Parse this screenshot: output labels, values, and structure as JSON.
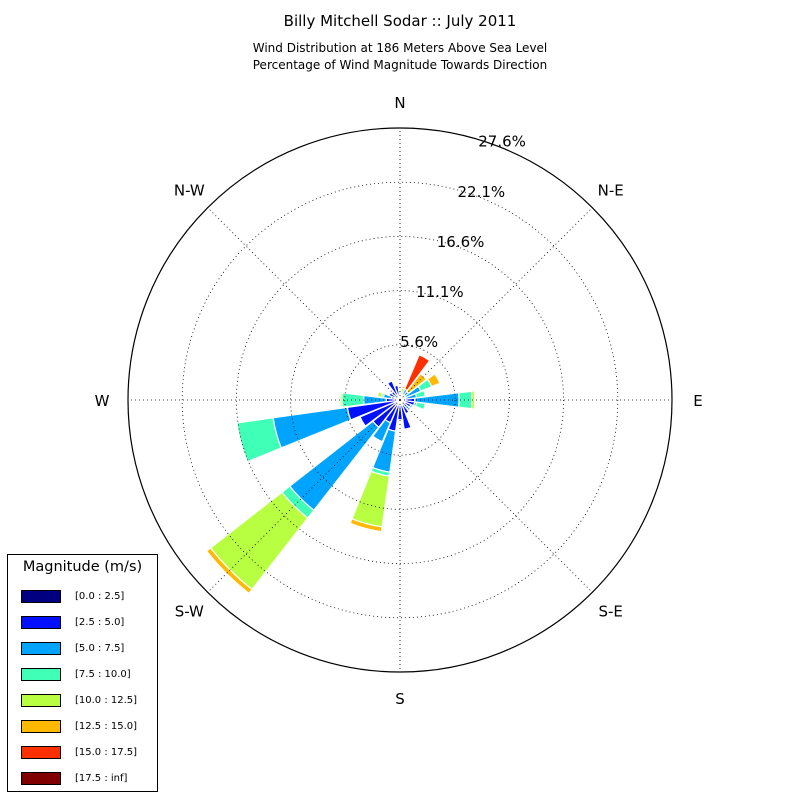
{
  "title": "Billy Mitchell Sodar :: July 2011",
  "subtitle_line1": "Wind Distribution at 186 Meters Above Sea Level",
  "subtitle_line2": "Percentage of Wind Magnitude Towards Direction",
  "colors": {
    "axis": "#000000",
    "grid": "#000000",
    "background": "#ffffff"
  },
  "chart_data": {
    "type": "windrose",
    "title": "Billy Mitchell Sodar :: July 2011",
    "subtitle": "Wind Distribution at 186 Meters Above Sea Level / Percentage of Wind Magnitude Towards Direction",
    "radial_unit": "%",
    "radial_max": 27.6,
    "radial_ticks": [
      5.6,
      11.1,
      16.6,
      22.1,
      27.6
    ],
    "radial_tick_labels": [
      "5.6%",
      "11.1%",
      "16.6%",
      "22.1%",
      "27.6%"
    ],
    "direction_labels": [
      {
        "label": "N",
        "angle": 0
      },
      {
        "label": "N-E",
        "angle": 45
      },
      {
        "label": "E",
        "angle": 90
      },
      {
        "label": "S-E",
        "angle": 135
      },
      {
        "label": "S",
        "angle": 180
      },
      {
        "label": "S-W",
        "angle": 225
      },
      {
        "label": "W",
        "angle": 270
      },
      {
        "label": "N-W",
        "angle": 315
      }
    ],
    "grid": true,
    "legend_title": "Magnitude (m/s)",
    "legend_position": "bottom-left",
    "bins": [
      {
        "label": "[0.0 : 2.5]",
        "color": "#000080"
      },
      {
        "label": "[2.5 : 5.0]",
        "color": "#0010ff"
      },
      {
        "label": "[5.0 : 7.5]",
        "color": "#00a4ff"
      },
      {
        "label": "[7.5 : 10.0]",
        "color": "#40ffb7"
      },
      {
        "label": "[10.0 : 12.5]",
        "color": "#b7ff40"
      },
      {
        "label": "[12.5 : 15.0]",
        "color": "#ffb900"
      },
      {
        "label": "[15.0 : 17.5]",
        "color": "#ff3000"
      },
      {
        "label": "[17.5 : inf]",
        "color": "#800000"
      }
    ],
    "sector_width_deg": 14,
    "sectors": [
      {
        "direction_deg": 0,
        "cumulative": [
          0.3,
          0.6,
          0.8,
          0.8,
          0.8,
          0.8,
          0.8,
          0.8
        ]
      },
      {
        "direction_deg": 15,
        "cumulative": [
          0.3,
          0.5,
          0.7,
          0.7,
          1.2,
          1.4,
          1.4,
          1.4
        ]
      },
      {
        "direction_deg": 30,
        "cumulative": [
          0.3,
          0.6,
          1.2,
          1.2,
          1.2,
          1.2,
          5.0,
          5.0
        ]
      },
      {
        "direction_deg": 45,
        "cumulative": [
          0.3,
          0.6,
          1.1,
          1.1,
          1.1,
          3.4,
          3.4,
          3.4
        ]
      },
      {
        "direction_deg": 60,
        "cumulative": [
          0.3,
          0.6,
          2.3,
          3.5,
          3.5,
          4.4,
          4.4,
          4.4
        ]
      },
      {
        "direction_deg": 75,
        "cumulative": [
          0.3,
          0.6,
          1.7,
          2.6,
          2.6,
          2.6,
          2.6,
          2.6
        ]
      },
      {
        "direction_deg": 90,
        "cumulative": [
          0.3,
          1.5,
          6.0,
          7.3,
          7.6,
          7.6,
          7.6,
          7.6
        ]
      },
      {
        "direction_deg": 105,
        "cumulative": [
          0.3,
          1.5,
          1.7,
          2.6,
          2.6,
          2.6,
          2.6,
          2.6
        ]
      },
      {
        "direction_deg": 120,
        "cumulative": [
          0.3,
          1.2,
          1.4,
          1.4,
          1.4,
          1.4,
          1.4,
          1.4
        ]
      },
      {
        "direction_deg": 135,
        "cumulative": [
          0.3,
          0.9,
          1.2,
          1.2,
          1.2,
          1.2,
          1.2,
          1.2
        ]
      },
      {
        "direction_deg": 150,
        "cumulative": [
          0.3,
          1.5,
          1.5,
          1.5,
          1.5,
          1.5,
          1.5,
          1.5
        ]
      },
      {
        "direction_deg": 165,
        "cumulative": [
          0.3,
          3.0,
          3.0,
          3.0,
          3.0,
          3.0,
          3.0,
          3.0
        ]
      },
      {
        "direction_deg": 180,
        "cumulative": [
          0.3,
          2.0,
          2.0,
          2.0,
          2.0,
          2.0,
          2.0,
          2.0
        ]
      },
      {
        "direction_deg": 195,
        "cumulative": [
          0.3,
          3.2,
          7.4,
          7.8,
          13.0,
          13.5,
          13.5,
          13.5
        ]
      },
      {
        "direction_deg": 210,
        "cumulative": [
          0.3,
          2.5,
          4.6,
          4.6,
          4.6,
          4.6,
          4.6,
          4.6
        ]
      },
      {
        "direction_deg": 225,
        "cumulative": [
          0.3,
          3.5,
          14.2,
          15.2,
          24.4,
          24.9,
          24.9,
          24.9
        ]
      },
      {
        "direction_deg": 240,
        "cumulative": [
          0.3,
          4.4,
          4.4,
          4.4,
          4.4,
          4.4,
          4.4,
          4.4
        ]
      },
      {
        "direction_deg": 255,
        "cumulative": [
          0.3,
          5.4,
          13.0,
          16.7,
          16.7,
          16.7,
          16.7,
          16.7
        ]
      },
      {
        "direction_deg": 270,
        "cumulative": [
          0.3,
          1.4,
          3.7,
          5.9,
          6.1,
          6.1,
          6.1,
          6.1
        ]
      },
      {
        "direction_deg": 285,
        "cumulative": [
          0.3,
          0.9,
          1.7,
          1.9,
          2.3,
          2.3,
          2.3,
          2.3
        ]
      },
      {
        "direction_deg": 300,
        "cumulative": [
          0.3,
          1.2,
          1.2,
          1.2,
          1.2,
          1.2,
          1.2,
          1.2
        ]
      },
      {
        "direction_deg": 315,
        "cumulative": [
          0.3,
          1.1,
          1.1,
          1.1,
          1.1,
          1.1,
          1.1,
          1.1
        ]
      },
      {
        "direction_deg": 330,
        "cumulative": [
          0.3,
          2.1,
          2.1,
          2.1,
          2.1,
          2.1,
          2.1,
          2.1
        ]
      },
      {
        "direction_deg": 345,
        "cumulative": [
          0.3,
          1.5,
          1.5,
          1.5,
          1.5,
          1.5,
          1.5,
          1.5
        ]
      }
    ]
  }
}
